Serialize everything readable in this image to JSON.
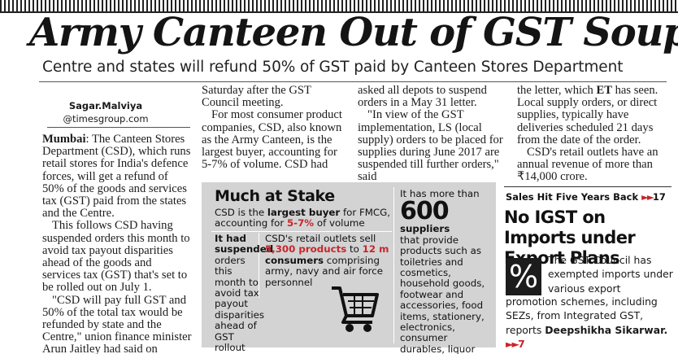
{
  "headline": "Army Canteen Out of GST Soup",
  "subhead": "Centre and states will refund 50% of GST paid by Canteen Stores Department",
  "byline": {
    "name": "Sagar.Malviya",
    "handle": "@timesgroup.com"
  },
  "col1": {
    "dateline": "Mumbai",
    "p1": ": The Canteen Stores Department (CSD), which runs retail stores for India's defence forces, will get a refund of 50% of the goods and services tax (GST) paid from the states and the Centre.",
    "p2": "This follows CSD having suspended orders this month to avoid tax payout disparities ahead of the goods and services tax (GST) that's set to be rolled out on July 1.",
    "p3": "\"CSD will pay full GST and 50% of the total tax would be refunded by state and the Centre,\" union finance minister Arun Jaitley had said on"
  },
  "col2": {
    "p1": "Saturday after the GST Council meeting.",
    "p2": "For most consumer product companies, CSD, also known as the Army Canteen, is the largest buyer, accounting for 5-7% of volume. CSD had"
  },
  "col3": {
    "p1": "asked all depots to suspend orders in a May 31 letter.",
    "p2": "\"In view of the GST implementation, LS (local supply) orders to be placed for supplies during June 2017 are suspended till further orders,\" said"
  },
  "col4": {
    "p1a": "the letter, which ",
    "p1b": "ET",
    "p1c": " has seen. Local supply orders, or direct supplies, typically have deliveries scheduled 21 days from the date of the order.",
    "p2": "CSD's retail outlets have an annual revenue of more than ₹14,000 crore."
  },
  "infographic": {
    "title": "Much at Stake",
    "buyer_a": "CSD is the ",
    "buyer_b": "largest buyer",
    "buyer_c": " for FMCG, accounting for ",
    "buyer_d": "5-7%",
    "buyer_e": " of volume",
    "susp_a": "It had suspended",
    "susp_b": "orders this month to avoid tax payout disparities ahead of GST rollout",
    "outlets_a": "CSD's retail outlets sell ",
    "outlets_b": "5,300 products",
    "outlets_c": " to ",
    "outlets_d": "12 m",
    "outlets_e": "consumers",
    "outlets_f": " comprising army, navy and air force personnel",
    "sup_a": "It has more than",
    "sup_big": "600",
    "sup_b": "suppliers",
    "sup_c": "that provide products such as toiletries and cosmetics, household goods, footwear and accessories, food items, stationery, electronics, consumer durables, liquor and vehicles"
  },
  "sidebar": {
    "label": "Sales Hit Five Years Back",
    "label_arrow": "►►",
    "label_page": "17",
    "heading": "No IGST on Imports under Export Plans",
    "pct_symbol": "%",
    "text_a": "The GST Council has exempted imports under various export",
    "text_b": "promotion schemes, including SEZs, from Integrated GST, reports",
    "author": "Deepshikha Sikarwar.",
    "arrow": "►►",
    "page": "7"
  },
  "colors": {
    "accent_red": "#c8252b",
    "box_gray": "#d3d3d3",
    "ink": "#1a1a1a"
  },
  "icons": [
    "shopping-cart-icon",
    "percent-icon"
  ]
}
